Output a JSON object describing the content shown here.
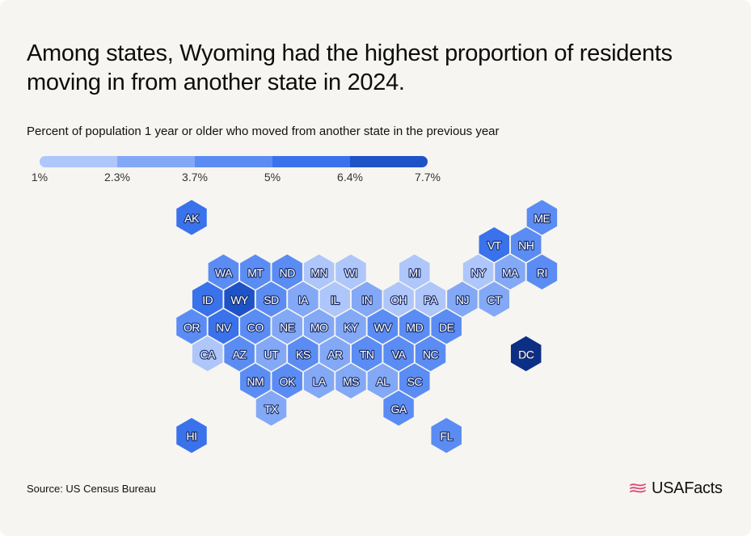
{
  "title": "Among states, Wyoming had the highest proportion of residents moving in from another state in 2024.",
  "subtitle": "Percent of population 1 year or older who moved from another state in the previous year",
  "legend": {
    "labels": [
      "1%",
      "2.3%",
      "3.7%",
      "5%",
      "6.4%",
      "7.7%"
    ],
    "colors": [
      "#aec6fa",
      "#83a8f6",
      "#5b8cf3",
      "#3a72ec",
      "#1e53c8",
      "#0c2f86"
    ]
  },
  "source": "Source: US Census Bureau",
  "brand": "USAFacts",
  "map_data": {
    "type": "hex-tile-choropleth",
    "measure_bins": [
      "1%",
      "2.3%",
      "3.7%",
      "5%",
      "6.4%",
      "7.7%"
    ],
    "states": [
      {
        "abbr": "AK",
        "row": 0,
        "col": 0,
        "bin": 3
      },
      {
        "abbr": "ME",
        "row": 0,
        "col": 11,
        "bin": 2
      },
      {
        "abbr": "VT",
        "row": 1,
        "col": 10,
        "bin": 3
      },
      {
        "abbr": "NH",
        "row": 1,
        "col": 11,
        "bin": 2
      },
      {
        "abbr": "WA",
        "row": 2,
        "col": 1,
        "bin": 2
      },
      {
        "abbr": "MT",
        "row": 2,
        "col": 2,
        "bin": 2
      },
      {
        "abbr": "ND",
        "row": 2,
        "col": 3,
        "bin": 2
      },
      {
        "abbr": "MN",
        "row": 2,
        "col": 4,
        "bin": 0
      },
      {
        "abbr": "WI",
        "row": 2,
        "col": 5,
        "bin": 0
      },
      {
        "abbr": "MI",
        "row": 2,
        "col": 7,
        "bin": 0
      },
      {
        "abbr": "NY",
        "row": 2,
        "col": 9,
        "bin": 0
      },
      {
        "abbr": "MA",
        "row": 2,
        "col": 10,
        "bin": 1
      },
      {
        "abbr": "RI",
        "row": 2,
        "col": 11,
        "bin": 2
      },
      {
        "abbr": "ID",
        "row": 3,
        "col": 1,
        "bin": 3
      },
      {
        "abbr": "WY",
        "row": 3,
        "col": 2,
        "bin": 4
      },
      {
        "abbr": "SD",
        "row": 3,
        "col": 3,
        "bin": 2
      },
      {
        "abbr": "IA",
        "row": 3,
        "col": 4,
        "bin": 1
      },
      {
        "abbr": "IL",
        "row": 3,
        "col": 5,
        "bin": 0
      },
      {
        "abbr": "IN",
        "row": 3,
        "col": 6,
        "bin": 1
      },
      {
        "abbr": "OH",
        "row": 3,
        "col": 7,
        "bin": 0
      },
      {
        "abbr": "PA",
        "row": 3,
        "col": 8,
        "bin": 0
      },
      {
        "abbr": "NJ",
        "row": 3,
        "col": 9,
        "bin": 1
      },
      {
        "abbr": "CT",
        "row": 3,
        "col": 10,
        "bin": 1
      },
      {
        "abbr": "OR",
        "row": 4,
        "col": 0,
        "bin": 2
      },
      {
        "abbr": "NV",
        "row": 4,
        "col": 1,
        "bin": 3
      },
      {
        "abbr": "CO",
        "row": 4,
        "col": 2,
        "bin": 2
      },
      {
        "abbr": "NE",
        "row": 4,
        "col": 3,
        "bin": 1
      },
      {
        "abbr": "MO",
        "row": 4,
        "col": 4,
        "bin": 1
      },
      {
        "abbr": "KY",
        "row": 4,
        "col": 5,
        "bin": 1
      },
      {
        "abbr": "WV",
        "row": 4,
        "col": 6,
        "bin": 2
      },
      {
        "abbr": "MD",
        "row": 4,
        "col": 7,
        "bin": 2
      },
      {
        "abbr": "DE",
        "row": 4,
        "col": 8,
        "bin": 2
      },
      {
        "abbr": "CA",
        "row": 5,
        "col": 1,
        "bin": 0
      },
      {
        "abbr": "AZ",
        "row": 5,
        "col": 2,
        "bin": 2
      },
      {
        "abbr": "UT",
        "row": 5,
        "col": 3,
        "bin": 1
      },
      {
        "abbr": "KS",
        "row": 5,
        "col": 4,
        "bin": 2
      },
      {
        "abbr": "AR",
        "row": 5,
        "col": 5,
        "bin": 1
      },
      {
        "abbr": "TN",
        "row": 5,
        "col": 6,
        "bin": 2
      },
      {
        "abbr": "VA",
        "row": 5,
        "col": 7,
        "bin": 2
      },
      {
        "abbr": "NC",
        "row": 5,
        "col": 8,
        "bin": 2
      },
      {
        "abbr": "DC",
        "row": 5,
        "col": 11,
        "bin": 5
      },
      {
        "abbr": "NM",
        "row": 6,
        "col": 2,
        "bin": 2
      },
      {
        "abbr": "OK",
        "row": 6,
        "col": 3,
        "bin": 2
      },
      {
        "abbr": "LA",
        "row": 6,
        "col": 4,
        "bin": 1
      },
      {
        "abbr": "MS",
        "row": 6,
        "col": 5,
        "bin": 1
      },
      {
        "abbr": "AL",
        "row": 6,
        "col": 6,
        "bin": 1
      },
      {
        "abbr": "SC",
        "row": 6,
        "col": 7,
        "bin": 2
      },
      {
        "abbr": "TX",
        "row": 7,
        "col": 3,
        "bin": 1
      },
      {
        "abbr": "GA",
        "row": 7,
        "col": 7,
        "bin": 2
      },
      {
        "abbr": "HI",
        "row": 8,
        "col": 0,
        "bin": 3
      },
      {
        "abbr": "FL",
        "row": 8,
        "col": 8,
        "bin": 2
      }
    ]
  }
}
